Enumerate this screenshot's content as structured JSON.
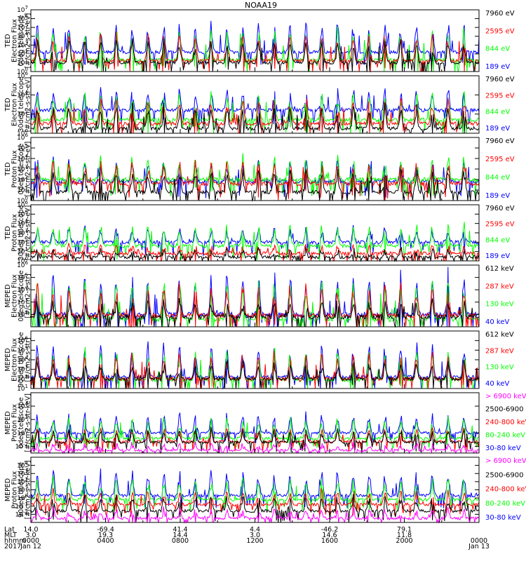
{
  "figure": {
    "title": "NOAA19",
    "footer": {
      "row_labels": [
        "Lat",
        "MLT",
        "hhmm",
        "2017"
      ],
      "columns": [
        {
          "lat": "14.0",
          "mlt": "3.0",
          "hhmm": "0000",
          "date": "Jan 12"
        },
        {
          "lat": "-69.4",
          "mlt": "19.3",
          "hhmm": "0400",
          "date": ""
        },
        {
          "lat": "41.4",
          "mlt": "14.4",
          "hhmm": "0800",
          "date": ""
        },
        {
          "lat": "4.4",
          "mlt": "3.0",
          "hhmm": "1200",
          "date": ""
        },
        {
          "lat": "-46.2",
          "mlt": "14.6",
          "hhmm": "1600",
          "date": ""
        },
        {
          "lat": "79.1",
          "mlt": "11.8",
          "hhmm": "2000",
          "date": ""
        },
        {
          "lat": "",
          "mlt": "",
          "hhmm": "0000",
          "date": "Jan 13"
        }
      ]
    },
    "colors": {
      "black": "#000000",
      "red": "#ff0000",
      "green": "#00ff00",
      "blue": "#0000ff",
      "magenta": "#ff00ff",
      "frame": "#000000"
    }
  },
  "chart_data": [
    {
      "type": "line",
      "ylabel": [
        "TED",
        "Electron Flux",
        "0deg telescope",
        "[#/cm2-s-str-eV]"
      ],
      "yscale": "log",
      "ylim_exp": [
        0,
        7
      ],
      "tick_exponents": [
        0,
        1,
        2,
        3,
        4,
        5,
        6,
        7
      ],
      "x_range_hours": [
        0,
        24
      ],
      "series": [
        {
          "name": "7960 eV",
          "color": "black",
          "base": 1.0,
          "peak": 3.8
        },
        {
          "name": "2595 eV",
          "color": "red",
          "base": 1.2,
          "peak": 4.4
        },
        {
          "name": "844 eV",
          "color": "green",
          "base": 1.3,
          "peak": 5.0
        },
        {
          "name": "189 eV",
          "color": "blue",
          "base": 2.2,
          "peak": 5.6
        }
      ]
    },
    {
      "type": "line",
      "ylabel": [
        "TED",
        "Electron Flux",
        "30deg telescope",
        "[#/cm2-s-str-eV]"
      ],
      "yscale": "log",
      "ylim_exp": [
        0,
        6
      ],
      "tick_exponents": [
        0,
        2,
        4,
        6
      ],
      "x_range_hours": [
        0,
        24
      ],
      "series": [
        {
          "name": "7960 eV",
          "color": "black",
          "base": 0.5,
          "peak": 3.0
        },
        {
          "name": "2595 eV",
          "color": "red",
          "base": 1.0,
          "peak": 3.8
        },
        {
          "name": "844 eV",
          "color": "green",
          "base": 1.4,
          "peak": 4.4
        },
        {
          "name": "189 eV",
          "color": "blue",
          "base": 2.4,
          "peak": 4.6
        }
      ]
    },
    {
      "type": "line",
      "ylabel": [
        "TED",
        "Proton Flux",
        "0deg telescope",
        "[#/cm2-s-str-eV]"
      ],
      "yscale": "log",
      "ylim_exp": [
        0,
        6
      ],
      "tick_exponents": [
        0,
        1,
        2,
        3,
        4,
        5,
        6
      ],
      "x_range_hours": [
        0,
        24
      ],
      "series": [
        {
          "name": "7960 eV",
          "color": "black",
          "base": 0.8,
          "peak": 3.0
        },
        {
          "name": "2595 eV",
          "color": "red",
          "base": 1.6,
          "peak": 3.8
        },
        {
          "name": "844 eV",
          "color": "green",
          "base": 2.0,
          "peak": 4.2
        },
        {
          "name": "189 eV",
          "color": "blue",
          "base": 1.8,
          "peak": 4.0
        }
      ]
    },
    {
      "type": "line",
      "ylabel": [
        "TED",
        "Proton Flux",
        "30deg telescope",
        "[#/cm2-s-str-eV]"
      ],
      "yscale": "log",
      "ylim_exp": [
        0,
        6
      ],
      "tick_exponents": [
        0,
        1,
        2,
        3,
        4,
        5,
        6
      ],
      "x_range_hours": [
        0,
        24
      ],
      "series": [
        {
          "name": "7960 eV",
          "color": "black",
          "base": 0.4,
          "peak": 1.2
        },
        {
          "name": "2595 eV",
          "color": "red",
          "base": 0.8,
          "peak": 1.6
        },
        {
          "name": "844 eV",
          "color": "green",
          "base": 1.6,
          "peak": 4.0
        },
        {
          "name": "189 eV",
          "color": "blue",
          "base": 2.0,
          "peak": 3.6
        }
      ]
    },
    {
      "type": "line",
      "ylabel": [
        "MEPED",
        "Electron Flux",
        "0deg telescope",
        "[#/cm2-s-str]"
      ],
      "yscale": "log",
      "ylim_exp": [
        1,
        6
      ],
      "tick_exponents": [
        2,
        3,
        4,
        5,
        6
      ],
      "x_range_hours": [
        0,
        24
      ],
      "series": [
        {
          "name": "612 keV",
          "color": "black",
          "base": 1.8,
          "peak": 3.2
        },
        {
          "name": "287 keV",
          "color": "red",
          "base": 1.9,
          "peak": 4.6
        },
        {
          "name": "130 keV",
          "color": "green",
          "base": 1.6,
          "peak": 5.0
        },
        {
          "name": "40 keV",
          "color": "blue",
          "base": 2.0,
          "peak": 5.5
        }
      ]
    },
    {
      "type": "line",
      "ylabel": [
        "MEPED",
        "Electron Flux",
        "90deg telescope",
        "[#/cm2-s-str]"
      ],
      "yscale": "log",
      "ylim_exp": [
        1,
        7
      ],
      "tick_exponents": [
        1,
        2,
        3,
        4,
        5,
        6
      ],
      "x_range_hours": [
        0,
        24
      ],
      "series": [
        {
          "name": "612 keV",
          "color": "black",
          "base": 2.0,
          "peak": 3.8
        },
        {
          "name": "287 keV",
          "color": "red",
          "base": 2.0,
          "peak": 4.8
        },
        {
          "name": "130 keV",
          "color": "green",
          "base": 1.9,
          "peak": 5.2
        },
        {
          "name": "40 keV",
          "color": "blue",
          "base": 2.2,
          "peak": 5.8
        }
      ]
    },
    {
      "type": "line",
      "ylabel": [
        "MEPED",
        "Proton Flux",
        "0deg telescope",
        "[#/cm2-s-str-keV]"
      ],
      "yscale": "log",
      "ylim_exp": [
        -3,
        6
      ],
      "tick_exponents": [
        -2,
        0,
        2,
        4
      ],
      "x_range_hours": [
        0,
        24
      ],
      "series": [
        {
          "name": "> 6900 keV",
          "color": "magenta",
          "base": -2.6,
          "peak": -1.6
        },
        {
          "name": "2500-6900",
          "color": "black",
          "base": -1.4,
          "peak": 0.6
        },
        {
          "name": "240-800 keV",
          "color": "red",
          "base": -1.3,
          "peak": 0.8
        },
        {
          "name": "80-240 keV",
          "color": "green",
          "base": -0.8,
          "peak": 2.4
        },
        {
          "name": "30-80 keV",
          "color": "blue",
          "base": 0.0,
          "peak": 3.0
        }
      ]
    },
    {
      "type": "line",
      "ylabel": [
        "MEPED",
        "Proton Flux",
        "90deg telescope",
        "[#/cm2-s-str-keV]"
      ],
      "yscale": "log",
      "ylim_exp": [
        -3,
        5
      ],
      "tick_exponents": [
        -2,
        -1,
        0,
        1,
        2,
        3,
        4
      ],
      "x_range_hours": [
        0,
        24
      ],
      "series": [
        {
          "name": "> 6900 keV",
          "color": "magenta",
          "base": -2.5,
          "peak": -1.4
        },
        {
          "name": "2500-6900",
          "color": "black",
          "base": -1.6,
          "peak": 0.4
        },
        {
          "name": "240-800 keV",
          "color": "red",
          "base": -0.8,
          "peak": 0.9
        },
        {
          "name": "80-240 keV",
          "color": "green",
          "base": -0.2,
          "peak": 2.6
        },
        {
          "name": "30-80 keV",
          "color": "blue",
          "base": 0.3,
          "peak": 3.4
        }
      ]
    }
  ]
}
